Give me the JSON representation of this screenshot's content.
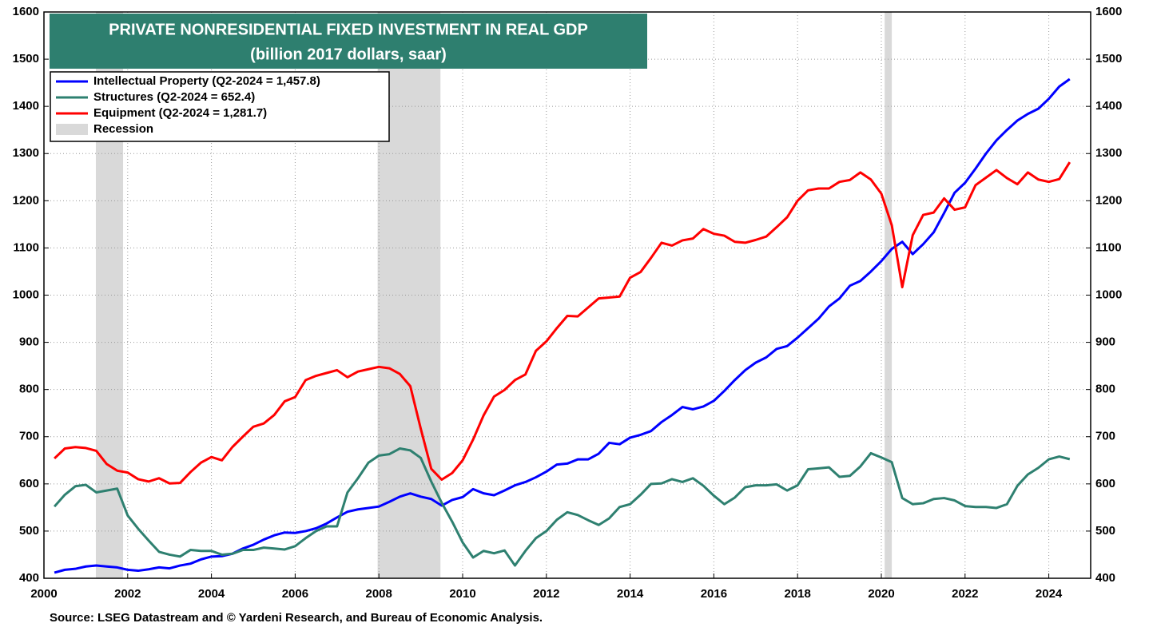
{
  "chart_data": {
    "type": "line",
    "title": "PRIVATE NONRESIDENTIAL FIXED INVESTMENT IN REAL GDP",
    "subtitle": "(billion 2017 dollars, saar)",
    "source": "Source: LSEG Datastream and © Yardeni Research, and Bureau of Economic Analysis.",
    "recession_label": "Recession",
    "recession_color": "#d9d9d9",
    "recessions": [
      [
        2001.24,
        2001.89
      ],
      [
        2007.97,
        2009.47
      ],
      [
        2020.08,
        2020.25
      ]
    ],
    "x": [
      2000.25,
      2000.5,
      2000.75,
      2001,
      2001.25,
      2001.5,
      2001.75,
      2002,
      2002.25,
      2002.5,
      2002.75,
      2003,
      2003.25,
      2003.5,
      2003.75,
      2004,
      2004.25,
      2004.5,
      2004.75,
      2005,
      2005.25,
      2005.5,
      2005.75,
      2006,
      2006.25,
      2006.5,
      2006.75,
      2007,
      2007.25,
      2007.5,
      2007.75,
      2008,
      2008.25,
      2008.5,
      2008.75,
      2009,
      2009.25,
      2009.5,
      2009.75,
      2010,
      2010.25,
      2010.5,
      2010.75,
      2011,
      2011.25,
      2011.5,
      2011.75,
      2012,
      2012.25,
      2012.5,
      2012.75,
      2013,
      2013.25,
      2013.5,
      2013.75,
      2014,
      2014.25,
      2014.5,
      2014.75,
      2015,
      2015.25,
      2015.5,
      2015.75,
      2016,
      2016.25,
      2016.5,
      2016.75,
      2017,
      2017.25,
      2017.5,
      2017.75,
      2018,
      2018.25,
      2018.5,
      2018.75,
      2019,
      2019.25,
      2019.5,
      2019.75,
      2020,
      2020.25,
      2020.5,
      2020.75,
      2021,
      2021.25,
      2021.5,
      2021.75,
      2022,
      2022.25,
      2022.5,
      2022.75,
      2023,
      2023.25,
      2023.5,
      2023.75,
      2024,
      2024.25,
      2024.5
    ],
    "series": [
      {
        "name": "Intellectual Property (Q2-2024 = 1,457.8)",
        "color": "#0000ff",
        "values": [
          412,
          418,
          420,
          425,
          427,
          425,
          423,
          418,
          416,
          419,
          423,
          421,
          427,
          431,
          440,
          446,
          447,
          452,
          463,
          471,
          482,
          491,
          497,
          496,
          500,
          506,
          516,
          529,
          541,
          546,
          549,
          552,
          562,
          573,
          580,
          573,
          568,
          554,
          566,
          572,
          589,
          580,
          576,
          586,
          597,
          604,
          614,
          626,
          641,
          643,
          652,
          652,
          664,
          687,
          684,
          698,
          704,
          712,
          731,
          746,
          763,
          758,
          764,
          776,
          797,
          820,
          841,
          857,
          868,
          886,
          892,
          910,
          930,
          950,
          976,
          993,
          1020,
          1030,
          1050,
          1072,
          1098,
          1113,
          1087,
          1108,
          1133,
          1174,
          1217,
          1238,
          1268,
          1300,
          1328,
          1350,
          1370,
          1384,
          1395,
          1416,
          1442,
          1457.8
        ]
      },
      {
        "name": "Structures  (Q2-2024 = 652.4)",
        "color": "#2e8070",
        "values": [
          552,
          577,
          595,
          598,
          582,
          586,
          590,
          533,
          505,
          480,
          456,
          450,
          446,
          460,
          458,
          458,
          450,
          452,
          460,
          460,
          465,
          463,
          461,
          468,
          485,
          500,
          510,
          510,
          582,
          612,
          645,
          660,
          663,
          675,
          671,
          655,
          605,
          560,
          520,
          476,
          444,
          458,
          453,
          459,
          427,
          458,
          485,
          500,
          524,
          540,
          534,
          523,
          513,
          527,
          551,
          557,
          577,
          600,
          601,
          610,
          604,
          612,
          596,
          575,
          557,
          571,
          593,
          597,
          597,
          599,
          586,
          597,
          631,
          633,
          635,
          615,
          617,
          637,
          665,
          656,
          646,
          570,
          557,
          559,
          568,
          570,
          565,
          553,
          551,
          551,
          549,
          557,
          596,
          620,
          634,
          652,
          658,
          652.4
        ]
      },
      {
        "name": "Equipment (Q2-2024 = 1,281.7)",
        "color": "#ff0000",
        "values": [
          654,
          675,
          678,
          676,
          670,
          642,
          628,
          624,
          610,
          605,
          612,
          601,
          602,
          625,
          645,
          657,
          650,
          678,
          700,
          721,
          728,
          746,
          775,
          784,
          820,
          829,
          835,
          841,
          826,
          838,
          843,
          848,
          845,
          833,
          807,
          717,
          632,
          609,
          623,
          650,
          694,
          745,
          785,
          799,
          820,
          832,
          882,
          902,
          930,
          956,
          955,
          974,
          993,
          995,
          997,
          1037,
          1049,
          1079,
          1111,
          1105,
          1116,
          1120,
          1140,
          1130,
          1126,
          1113,
          1111,
          1117,
          1124,
          1144,
          1165,
          1200,
          1222,
          1226,
          1226,
          1240,
          1244,
          1260,
          1245,
          1215,
          1148,
          1017,
          1127,
          1170,
          1175,
          1205,
          1181,
          1186,
          1233,
          1249,
          1265,
          1248,
          1235,
          1260,
          1245,
          1240,
          1246,
          1281.7
        ]
      }
    ],
    "xlim": [
      2000,
      2025
    ],
    "xticks": [
      2000,
      2002,
      2004,
      2006,
      2008,
      2010,
      2012,
      2014,
      2016,
      2018,
      2020,
      2022,
      2024
    ],
    "ylim": [
      400,
      1600
    ],
    "yticks": [
      400,
      500,
      600,
      700,
      800,
      900,
      1000,
      1100,
      1200,
      1300,
      1400,
      1500,
      1600
    ],
    "grid": true
  }
}
